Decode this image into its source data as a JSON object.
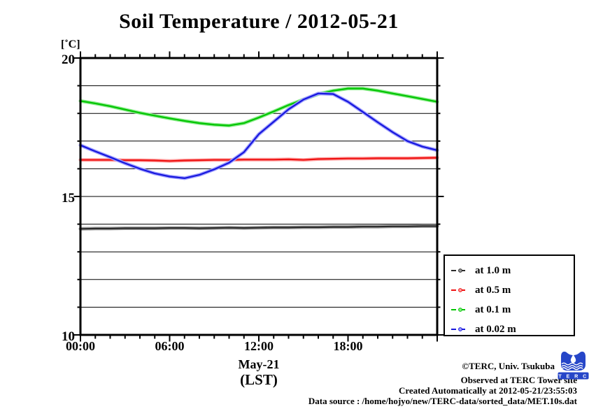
{
  "title": "Soil Temperature / 2012-05-21",
  "y_unit_label": "[˚C]",
  "x_axis": {
    "date_label": "May-21",
    "tz_label": "(LST)"
  },
  "legend": {
    "items": [
      {
        "label": "at 1.0 m",
        "color": "#2b2b2b",
        "halo": "#9a9a9a"
      },
      {
        "label": "at 0.5 m",
        "color": "#ee1111",
        "halo": "#ffa0a0"
      },
      {
        "label": "at 0.1 m",
        "color": "#00c400",
        "halo": "#8aec8a"
      },
      {
        "label": "at 0.02 m",
        "color": "#1717dd",
        "halo": "#a0a0ff"
      }
    ]
  },
  "footer": {
    "lines": [
      "©TERC, Univ. Tsukuba",
      "Observed at TERC Tower site",
      "Created Automatically at 2012-05-21/23:55:03",
      "Data source : /home/hojyo/new/TERC-data/sorted_data/MET.10s.dat"
    ]
  },
  "logo": {
    "letters": "T E R C",
    "color": "#2646c8"
  },
  "chart_data": {
    "type": "line",
    "title": "Soil Temperature / 2012-05-21",
    "xlabel": "May-21 (LST)",
    "ylabel": "[˚C]",
    "xlim": [
      0,
      24
    ],
    "ylim": [
      10,
      20
    ],
    "grid": "horizontal lines every 1 degC, no vertical gridlines",
    "legend_position": "bottom-right outside plot",
    "x_hours": [
      0,
      1,
      2,
      3,
      4,
      5,
      6,
      7,
      8,
      9,
      10,
      11,
      12,
      13,
      14,
      15,
      16,
      17,
      18,
      19,
      20,
      21,
      22,
      23,
      24
    ],
    "xtick_major": [
      0,
      6,
      12,
      18,
      24
    ],
    "xtick_labels": {
      "0": "00:00",
      "6": "06:00",
      "12": "12:00",
      "18": "18:00"
    },
    "ytick_major": [
      10,
      15,
      20
    ],
    "ytick_labels": {
      "10": "10",
      "15": "15",
      "20": "20"
    },
    "series": [
      {
        "name": "at 1.0 m",
        "depth_m": 1.0,
        "color": "#2b2b2b",
        "halo": "#9a9a9a",
        "values": [
          13.83,
          13.84,
          13.84,
          13.85,
          13.85,
          13.85,
          13.86,
          13.86,
          13.85,
          13.86,
          13.87,
          13.86,
          13.87,
          13.88,
          13.88,
          13.89,
          13.89,
          13.9,
          13.9,
          13.91,
          13.91,
          13.92,
          13.92,
          13.93,
          13.93
        ]
      },
      {
        "name": "at 0.5 m",
        "depth_m": 0.5,
        "color": "#ee1111",
        "halo": "#ffa0a0",
        "values": [
          16.32,
          16.32,
          16.32,
          16.31,
          16.31,
          16.3,
          16.28,
          16.3,
          16.31,
          16.32,
          16.32,
          16.33,
          16.33,
          16.33,
          16.34,
          16.32,
          16.35,
          16.36,
          16.37,
          16.37,
          16.38,
          16.38,
          16.38,
          16.39,
          16.4
        ]
      },
      {
        "name": "at 0.1 m",
        "depth_m": 0.1,
        "color": "#00c400",
        "halo": "#8aec8a",
        "values": [
          18.45,
          18.36,
          18.26,
          18.14,
          18.02,
          17.92,
          17.82,
          17.73,
          17.65,
          17.59,
          17.56,
          17.65,
          17.85,
          18.07,
          18.3,
          18.5,
          18.7,
          18.82,
          18.9,
          18.9,
          18.82,
          18.72,
          18.62,
          18.52,
          18.42
        ]
      },
      {
        "name": "at 0.02 m",
        "depth_m": 0.02,
        "color": "#1717dd",
        "halo": "#a0a0ff",
        "values": [
          16.85,
          16.63,
          16.42,
          16.2,
          16.0,
          15.83,
          15.72,
          15.66,
          15.78,
          15.98,
          16.22,
          16.6,
          17.25,
          17.7,
          18.15,
          18.5,
          18.72,
          18.7,
          18.42,
          18.05,
          17.68,
          17.32,
          17.0,
          16.8,
          16.67
        ]
      }
    ]
  }
}
